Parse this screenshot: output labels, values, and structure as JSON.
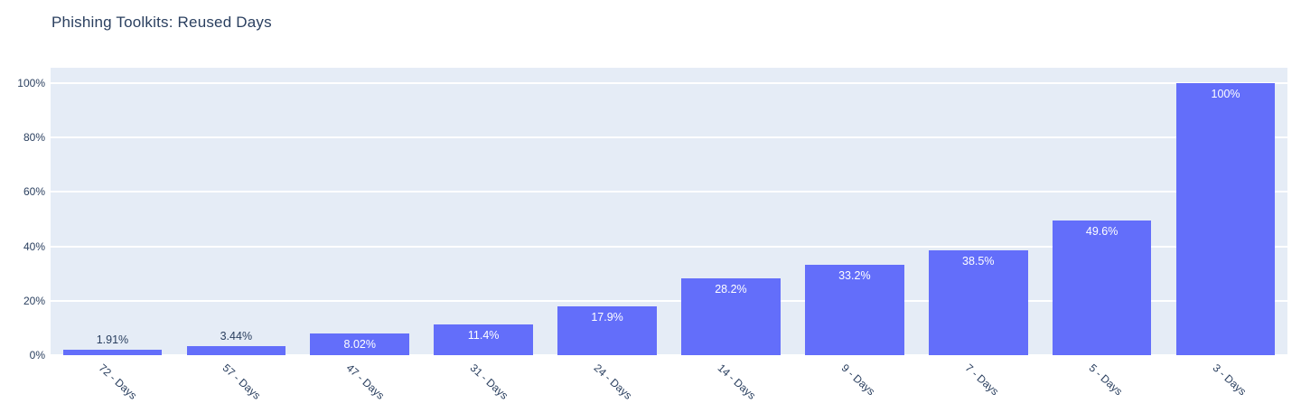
{
  "title": "Phishing Toolkits: Reused Days",
  "colors": {
    "bar": "#636efa",
    "plot_background": "#e5ecf6",
    "gridline": "#ffffff",
    "text": "#2a3f5f",
    "inside_label": "#ffffff",
    "page_background": "#ffffff"
  },
  "chart_data": {
    "type": "bar",
    "title": "Phishing Toolkits: Reused Days",
    "categories": [
      "72 - Days",
      "57 - Days",
      "47 - Days",
      "31 - Days",
      "24 - Days",
      "14 - Days",
      "9 - Days",
      "7 - Days",
      "5 - Days",
      "3 - Days"
    ],
    "values": [
      1.91,
      3.44,
      8.02,
      11.4,
      17.9,
      28.2,
      33.2,
      38.5,
      49.6,
      100
    ],
    "value_labels": [
      "1.91%",
      "3.44%",
      "8.02%",
      "11.4%",
      "17.9%",
      "28.2%",
      "33.2%",
      "38.5%",
      "49.6%",
      "100%"
    ],
    "label_placement": [
      "outside",
      "outside",
      "inside",
      "inside",
      "inside",
      "inside",
      "inside",
      "inside",
      "inside",
      "inside"
    ],
    "xlabel": "",
    "ylabel": "",
    "ylim": [
      0,
      105.6
    ],
    "yticks": [
      "0%",
      "20%",
      "40%",
      "60%",
      "80%",
      "100%"
    ],
    "ytick_values": [
      0,
      20,
      40,
      60,
      80,
      100
    ],
    "grid": "horizontal",
    "legend": "none",
    "x_tick_rotation_deg": 42
  }
}
